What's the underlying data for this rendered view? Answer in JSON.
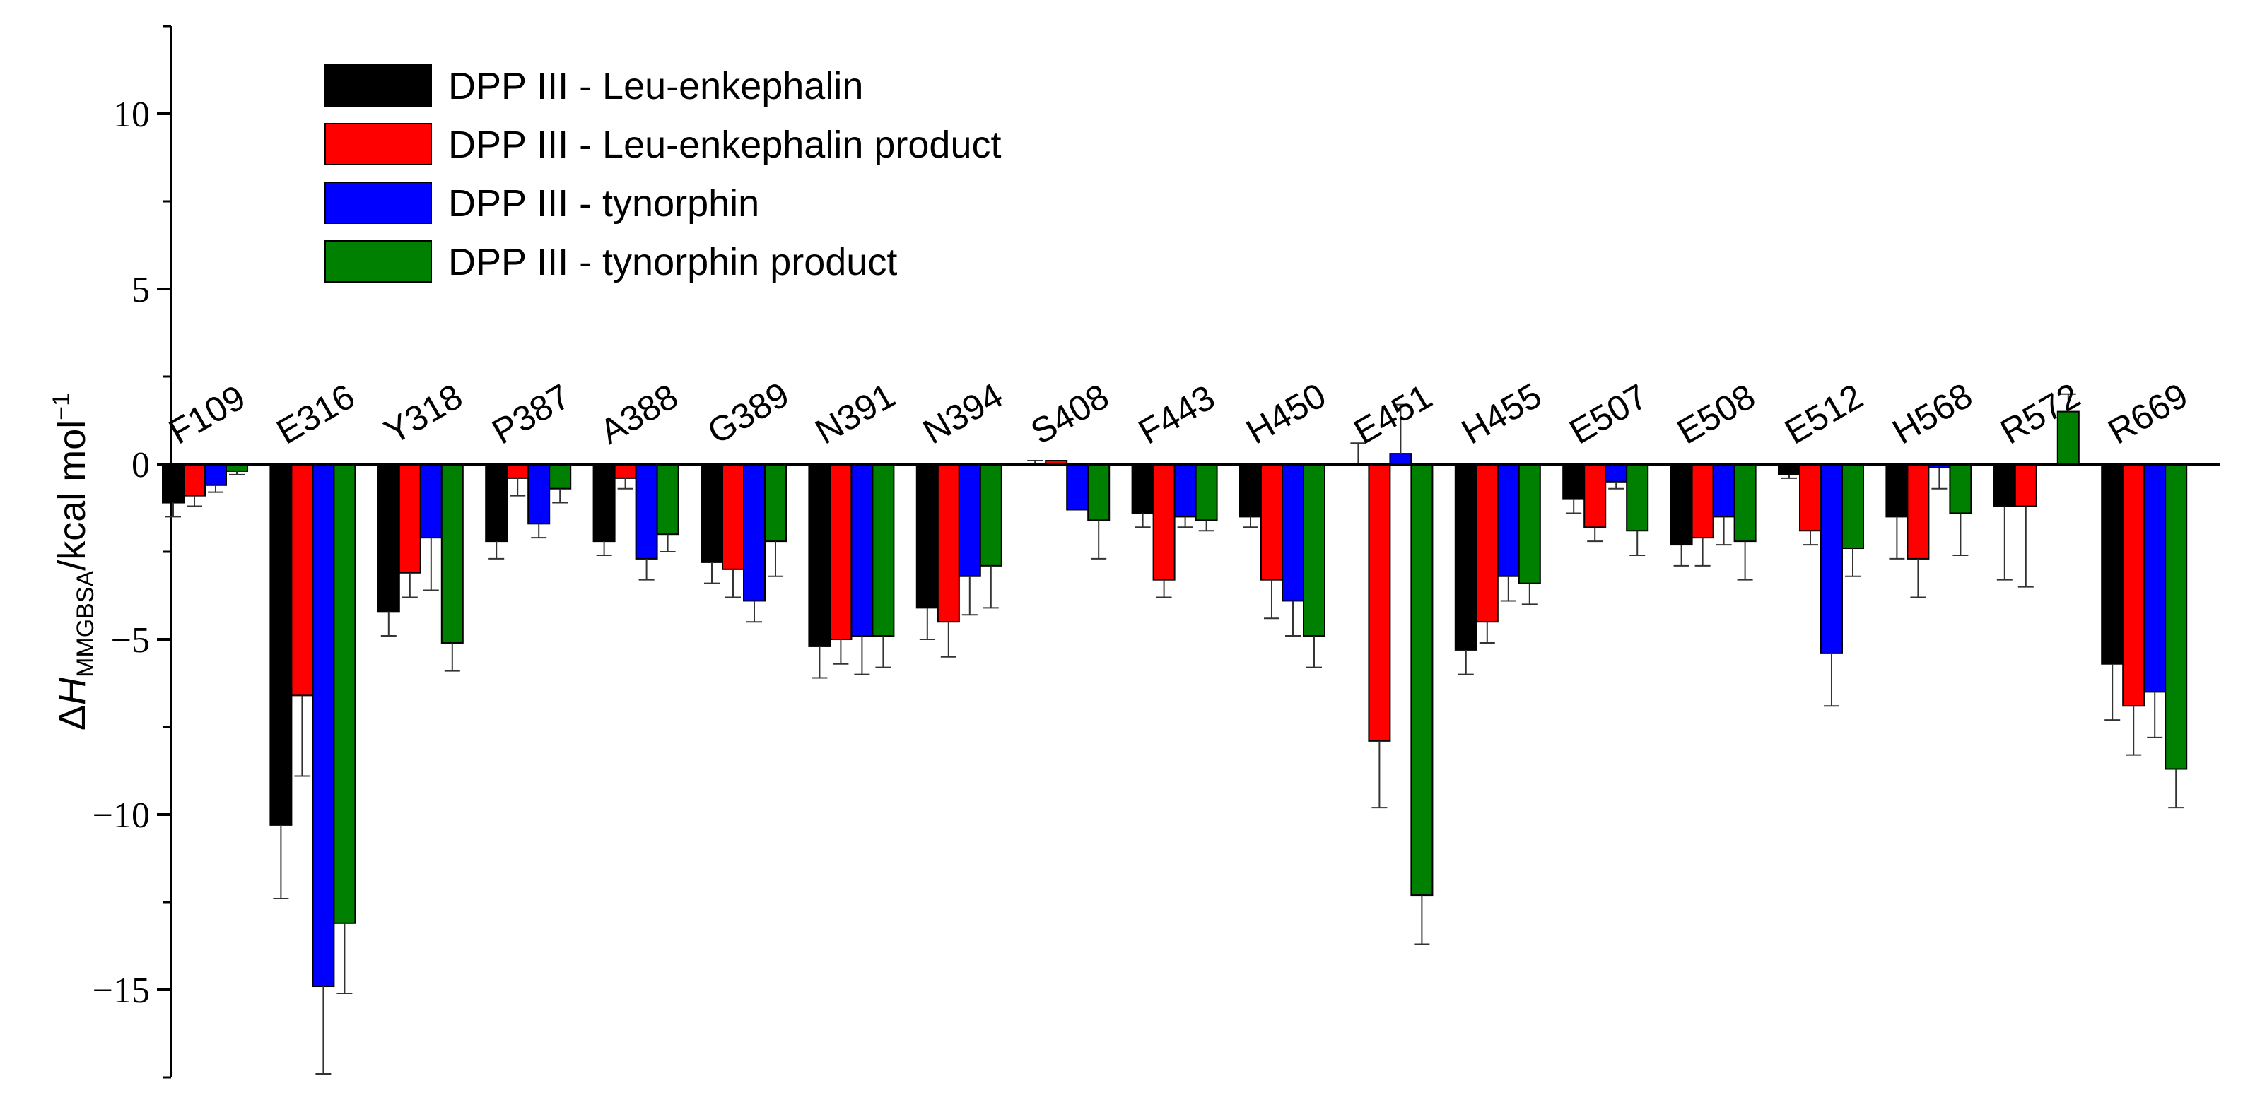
{
  "chart_data": {
    "type": "bar",
    "title": "",
    "xlabel": "",
    "ylabel": {
      "delta": "Δ",
      "H": "H",
      "subscript": "MMGBSA",
      "unit": "/kcal mol",
      "superscript": "−1"
    },
    "ylim": [
      -17.5,
      12.5
    ],
    "yticks": [
      10,
      5,
      0,
      -5,
      -10,
      -15
    ],
    "ytick_labels": [
      "10",
      "5",
      "0",
      "−5",
      "−10",
      "−15"
    ],
    "grid": false,
    "legend_position": "top-left",
    "categories": [
      "F109",
      "E316",
      "Y318",
      "P387",
      "A388",
      "G389",
      "N391",
      "N394",
      "S408",
      "F443",
      "H450",
      "E451",
      "H455",
      "E507",
      "E508",
      "E512",
      "H568",
      "R572",
      "R669"
    ],
    "series": [
      {
        "name": "DPP III - Leu-enkephalin",
        "color": "#000000",
        "values": [
          -1.1,
          -10.3,
          -4.2,
          -2.2,
          -2.2,
          -2.8,
          -5.2,
          -4.1,
          0.0,
          -1.4,
          -1.5,
          0.0,
          -5.3,
          -1.0,
          -2.3,
          -0.3,
          -1.5,
          -1.2,
          -5.7
        ],
        "errors": [
          0.4,
          2.1,
          0.7,
          0.5,
          0.4,
          0.6,
          0.9,
          0.9,
          0.1,
          0.4,
          0.3,
          0.6,
          0.7,
          0.4,
          0.6,
          0.1,
          1.2,
          2.1,
          1.6
        ]
      },
      {
        "name": "DPP III - Leu-enkephalin product",
        "color": "#ff0000",
        "values": [
          -0.9,
          -6.6,
          -3.1,
          -0.4,
          -0.4,
          -3.0,
          -5.0,
          -4.5,
          0.1,
          -3.3,
          -3.3,
          -7.9,
          -4.5,
          -1.8,
          -2.1,
          -1.9,
          -2.7,
          -1.2,
          -6.9
        ],
        "errors": [
          0.3,
          2.3,
          0.7,
          0.5,
          0.3,
          0.8,
          0.7,
          1.0,
          0.0,
          0.5,
          1.1,
          1.9,
          0.6,
          0.4,
          0.8,
          0.4,
          1.1,
          2.3,
          1.4
        ]
      },
      {
        "name": "DPP III - tynorphin",
        "color": "#0000ff",
        "values": [
          -0.6,
          -14.9,
          -2.1,
          -1.7,
          -2.7,
          -3.9,
          -4.9,
          -3.2,
          -1.3,
          -1.5,
          -3.9,
          0.3,
          -3.2,
          -0.5,
          -1.5,
          -5.4,
          -0.1,
          0.0,
          -6.5
        ],
        "errors": [
          0.2,
          2.5,
          1.5,
          0.4,
          0.6,
          0.6,
          1.1,
          1.1,
          0.0,
          0.3,
          1.0,
          1.4,
          0.7,
          0.2,
          0.8,
          1.5,
          0.6,
          0.0,
          1.3
        ]
      },
      {
        "name": "DPP III - tynorphin product",
        "color": "#008000",
        "values": [
          -0.2,
          -13.1,
          -5.1,
          -0.7,
          -2.0,
          -2.2,
          -4.9,
          -2.9,
          -1.6,
          -1.6,
          -4.9,
          -12.3,
          -3.4,
          -1.9,
          -2.2,
          -2.4,
          -1.4,
          1.5,
          -8.7
        ],
        "errors": [
          0.1,
          2.0,
          0.8,
          0.4,
          0.5,
          1.0,
          0.9,
          1.2,
          1.1,
          0.3,
          0.9,
          1.4,
          0.6,
          0.7,
          1.1,
          0.8,
          1.2,
          0.5,
          1.1
        ]
      }
    ]
  }
}
